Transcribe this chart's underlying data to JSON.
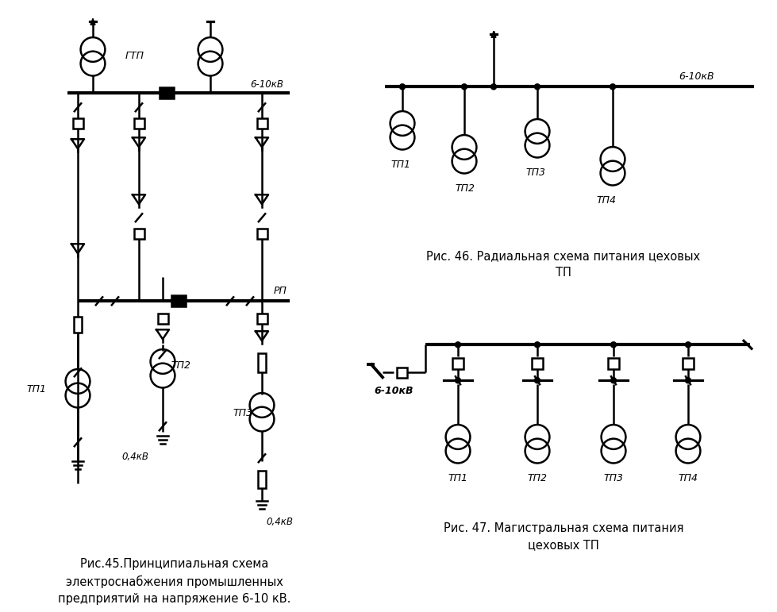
{
  "bg_color": "#ffffff",
  "lc": "#000000",
  "lw": 1.8,
  "lw_bus": 3.0,
  "fig45_caption": "Рис.45.Принципиальная схема\nэлектроснабжения промышленных\nпредприятий на напряжение 6-10 кВ.",
  "fig46_caption": "Рис. 46. Радиальная схема питания цеховых\nТП",
  "fig47_caption": "Рис. 47. Магистральная схема питания\nцеховых ТП",
  "label_610": "6-10кВ",
  "label_04": "0,4кВ",
  "label_GTP": "ГТП",
  "label_RP": "РП",
  "tp_labels": [
    "ТП1",
    "ТП2",
    "ТП3",
    "ТП4"
  ]
}
